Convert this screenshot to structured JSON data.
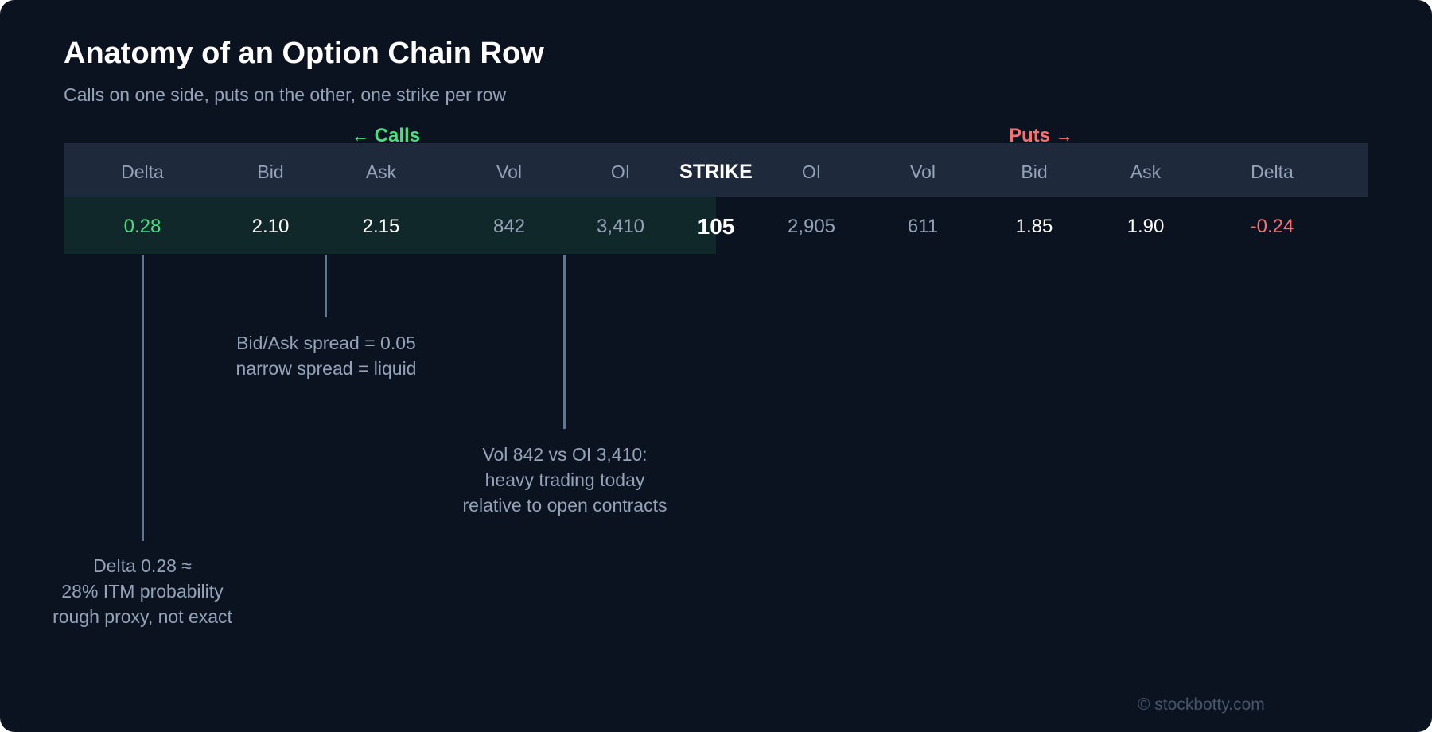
{
  "title": "Anatomy of an Option Chain Row",
  "subtitle": "Calls on one side, puts on the other, one strike per row",
  "sides": {
    "calls": {
      "arrow": "←",
      "label": "Calls"
    },
    "puts": {
      "label": "Puts",
      "arrow": "→"
    }
  },
  "headers": {
    "call_delta": "Delta",
    "call_bid": "Bid",
    "call_ask": "Ask",
    "call_vol": "Vol",
    "call_oi": "OI",
    "strike": "STRIKE",
    "put_oi": "OI",
    "put_vol": "Vol",
    "put_bid": "Bid",
    "put_ask": "Ask",
    "put_delta": "Delta"
  },
  "row": {
    "call_delta": "0.28",
    "call_bid": "2.10",
    "call_ask": "2.15",
    "call_vol": "842",
    "call_oi": "3,410",
    "strike": "105",
    "put_oi": "2,905",
    "put_vol": "611",
    "put_bid": "1.85",
    "put_ask": "1.90",
    "put_delta": "-0.24"
  },
  "annotations": {
    "spread": [
      "Bid/Ask spread = 0.05",
      "narrow spread = liquid"
    ],
    "volume": [
      "Vol 842 vs OI 3,410:",
      "heavy trading today",
      "relative to open contracts"
    ],
    "delta": [
      "Delta 0.28 ≈",
      "28% ITM probability",
      "rough proxy, not exact"
    ]
  },
  "footer": "© stockbotty.com",
  "colors": {
    "background": "#0b1220",
    "header_band": "#1e293b",
    "call_row_highlight": "#11282a",
    "calls_accent": "#4ade80",
    "puts_accent": "#f87171",
    "muted_text": "#94a3b8",
    "leader_line": "#64748b"
  }
}
